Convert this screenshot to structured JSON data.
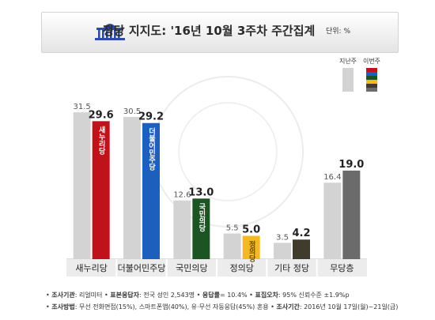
{
  "header": {
    "title": "정당 지지도: '16년 10월 3주차 주간집계",
    "unit": "단위: %"
  },
  "chart_data": {
    "type": "bar",
    "categories": [
      "새누리당",
      "더불어민주당",
      "국민의당",
      "정의당",
      "기타 정당",
      "무당층"
    ],
    "series": [
      {
        "name": "지난주",
        "values": [
          31.5,
          30.5,
          12.6,
          5.5,
          3.5,
          16.4
        ]
      },
      {
        "name": "이번주",
        "values": [
          29.6,
          29.2,
          13.0,
          5.0,
          4.2,
          19.0
        ]
      }
    ],
    "party_labels": [
      "새누리당",
      "더불어민주당",
      "국민의당",
      "정의당"
    ],
    "colors": {
      "last_week": "#d3d3d3",
      "this_week": [
        "#c0121b",
        "#1c5fbd",
        "#1d5424",
        "#f4b823",
        "#3f3c2e",
        "#6b6b6b"
      ]
    },
    "legend_placement": "top-right",
    "grid": false
  },
  "notes": [
    {
      "k1": "조사기관",
      "v1": ": 리얼미터",
      "k2": "표본응답자",
      "v2": ": 전국 성인 2,543명",
      "k3": "응답률",
      "v3": "= 10.4%",
      "k4": "표집오차",
      "v4": ": 95% 신뢰수준 ±1.9%p"
    },
    {
      "k1": "조사방법",
      "v1": ": 무선 전화면접(15%), 스마트폰앱(40%), 유·무선 자동응답(45%) 혼용",
      "k2": "조사기간",
      "v2": ": 2016년 10월 17일(월)~21일(금)"
    }
  ],
  "icons": {
    "header": "national-assembly-building-icon",
    "watermark": "national-assembly-seal"
  }
}
